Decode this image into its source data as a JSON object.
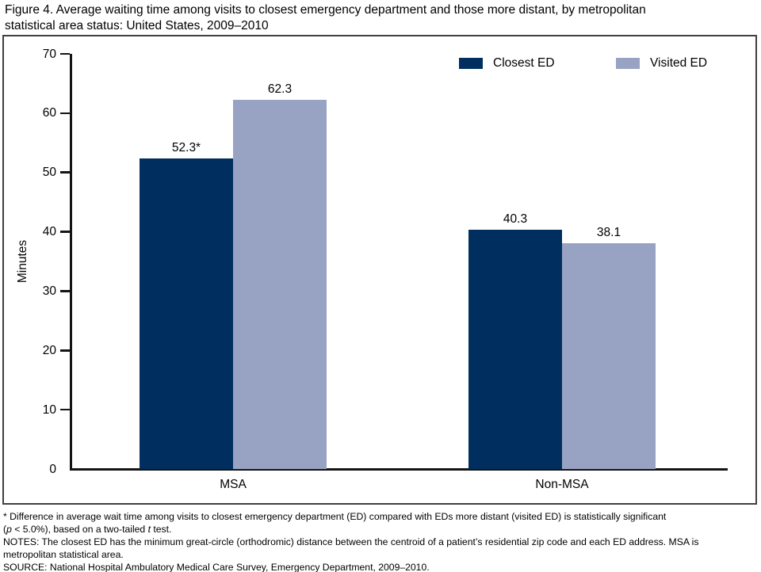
{
  "figure": {
    "title_line1": "Figure 4. Average waiting time among visits to closest emergency department and those more distant, by metropolitan",
    "title_line2": "statistical area status: United States, 2009–2010"
  },
  "chart_data": {
    "type": "bar",
    "title": "Figure 4. Average waiting time among visits to closest emergency department and those more distant, by metropolitan statistical area status: United States, 2009–2010",
    "categories": [
      "MSA",
      "Non-MSA"
    ],
    "series": [
      {
        "name": "Closest ED",
        "color": "#002f5f",
        "values": [
          52.3,
          40.3
        ],
        "value_labels": [
          "52.3*",
          "40.3"
        ]
      },
      {
        "name": "Visited ED",
        "color": "#98a3c4",
        "values": [
          62.3,
          38.1
        ],
        "value_labels": [
          "62.3",
          "38.1"
        ]
      }
    ],
    "xlabel": "",
    "ylabel": "Minutes",
    "ylim": [
      0,
      70
    ],
    "yticks": [
      0,
      10,
      20,
      30,
      40,
      50,
      60,
      70
    ],
    "grid": false,
    "legend_position": "top-right",
    "axis_color": "#141414"
  },
  "footnotes": {
    "significance_line1": "* Difference in average wait time among visits to closest emergency department (ED) compared with EDs more distant (visited ED) is statistically significant",
    "significance_line2_parts": [
      "(",
      "p",
      " < 5.0%), based on a two-tailed ",
      "t",
      " test."
    ],
    "notes_line1": "NOTES: The closest ED has the minimum great-circle (orthodromic) distance between the centroid of a patient’s residential zip code and each ED address. MSA is",
    "notes_line2": "metropolitan statistical area.",
    "source": "SOURCE: National Hospital Ambulatory Medical Care Survey, Emergency Department, 2009–2010."
  }
}
